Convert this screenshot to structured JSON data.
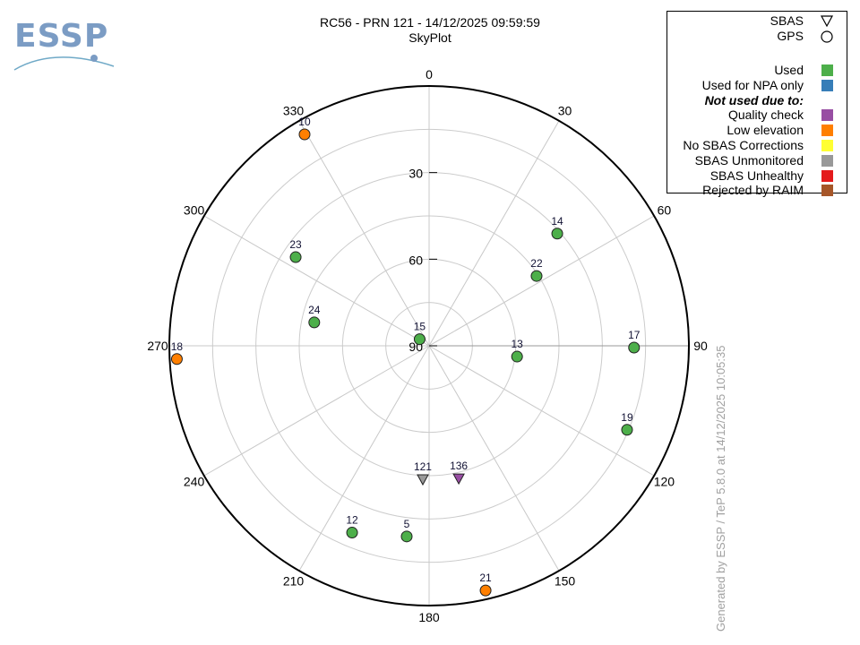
{
  "logo": {
    "text": "ESSP",
    "color": "#7b9cc4"
  },
  "title": {
    "line1": "RC56 - PRN 121 - 14/12/2025 09:59:59",
    "line2": "SkyPlot"
  },
  "legend": {
    "shapes": [
      {
        "label": "SBAS",
        "shape": "triangle"
      },
      {
        "label": "GPS",
        "shape": "circle"
      }
    ],
    "statuses": [
      {
        "label": "Used",
        "color": "#4daf4a"
      },
      {
        "label": "Used for NPA only",
        "color": "#377eb8"
      },
      {
        "label": "Not used due to:",
        "heading": true
      },
      {
        "label": "Quality check",
        "color": "#984ea3"
      },
      {
        "label": "Low elevation",
        "color": "#ff7f00"
      },
      {
        "label": "No SBAS Corrections",
        "color": "#ffff33"
      },
      {
        "label": "SBAS Unmonitored",
        "color": "#999999"
      },
      {
        "label": "SBAS Unhealthy",
        "color": "#e41a1c"
      },
      {
        "label": "Rejected by RAIM",
        "color": "#a65628"
      }
    ]
  },
  "footer": "Generated by ESSP / TeP 5.8.0 at 14/12/2025 10:05:35",
  "chart_data": {
    "type": "scatter",
    "projection": "polar-skyplot",
    "title": "RC56 - PRN 121 - 14/12/2025 09:59:59",
    "subtitle": "SkyPlot",
    "azimuth_ticks": [
      "0",
      "30",
      "60",
      "90",
      "120",
      "150",
      "180",
      "210",
      "240",
      "270",
      "300",
      "330"
    ],
    "elevation_ticks": [
      "30",
      "60",
      "90"
    ],
    "elevation_rings": [
      0,
      15,
      30,
      45,
      60,
      75
    ],
    "satellites": [
      {
        "prn": "10",
        "type": "GPS",
        "az": 329.5,
        "el": 5,
        "status": "Low elevation",
        "color": "#ff7f00"
      },
      {
        "prn": "14",
        "type": "GPS",
        "az": 48.8,
        "el": 31,
        "status": "Used",
        "color": "#4daf4a"
      },
      {
        "prn": "22",
        "type": "GPS",
        "az": 57,
        "el": 45.6,
        "status": "Used",
        "color": "#4daf4a"
      },
      {
        "prn": "23",
        "type": "GPS",
        "az": 303.6,
        "el": 34.5,
        "status": "Used",
        "color": "#4daf4a"
      },
      {
        "prn": "24",
        "type": "GPS",
        "az": 281.5,
        "el": 49.4,
        "status": "Used",
        "color": "#4daf4a"
      },
      {
        "prn": "15",
        "type": "GPS",
        "az": 305,
        "el": 86,
        "status": "Used",
        "color": "#4daf4a"
      },
      {
        "prn": "13",
        "type": "GPS",
        "az": 97,
        "el": 59.3,
        "status": "Used",
        "color": "#4daf4a"
      },
      {
        "prn": "17",
        "type": "GPS",
        "az": 90.5,
        "el": 19,
        "status": "Used",
        "color": "#4daf4a"
      },
      {
        "prn": "19",
        "type": "GPS",
        "az": 113,
        "el": 15.5,
        "status": "Used",
        "color": "#4daf4a"
      },
      {
        "prn": "18",
        "type": "GPS",
        "az": 267,
        "el": 2.5,
        "status": "Low elevation",
        "color": "#ff7f00"
      },
      {
        "prn": "21",
        "type": "GPS",
        "az": 167,
        "el": 3,
        "status": "Low elevation",
        "color": "#ff7f00"
      },
      {
        "prn": "5",
        "type": "GPS",
        "az": 186.7,
        "el": 23.5,
        "status": "Used",
        "color": "#4daf4a"
      },
      {
        "prn": "12",
        "type": "GPS",
        "az": 202.4,
        "el": 20,
        "status": "Used",
        "color": "#4daf4a"
      },
      {
        "prn": "121",
        "type": "SBAS",
        "az": 182.7,
        "el": 43.7,
        "status": "SBAS Unmonitored",
        "color": "#999999"
      },
      {
        "prn": "136",
        "type": "SBAS",
        "az": 167.4,
        "el": 42.9,
        "status": "Quality check",
        "color": "#984ea3"
      }
    ]
  }
}
